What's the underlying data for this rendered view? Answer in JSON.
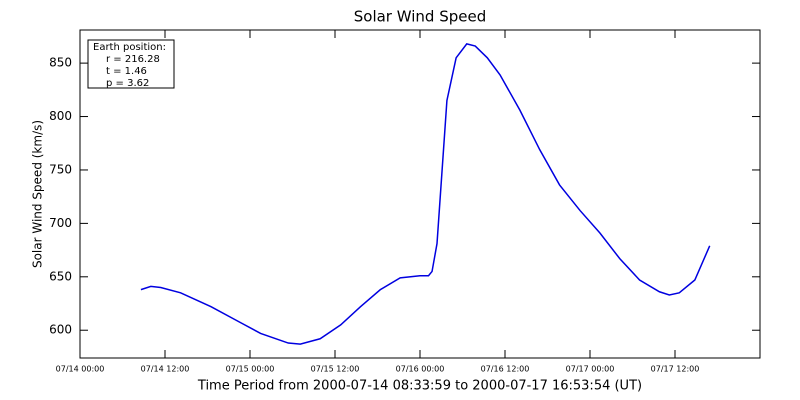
{
  "chart_data": {
    "type": "line",
    "title": "Solar Wind Speed",
    "xlabel": "Time Period from 2000-07-14 08:33:59 to 2000-07-17 16:53:54 (UT)",
    "ylabel": "Solar Wind Speed (km/s)",
    "annotations": [
      "Earth position:",
      "r = 216.28",
      "t = 1.46",
      "p = 3.62"
    ],
    "xlim": [
      0,
      96
    ],
    "ylim": [
      574,
      881
    ],
    "xticks": [
      {
        "value": 0,
        "label": "07/14 00:00"
      },
      {
        "value": 12,
        "label": "07/14 12:00"
      },
      {
        "value": 24,
        "label": "07/15 00:00"
      },
      {
        "value": 36,
        "label": "07/15 12:00"
      },
      {
        "value": 48,
        "label": "07/16 00:00"
      },
      {
        "value": 60,
        "label": "07/16 12:00"
      },
      {
        "value": 72,
        "label": "07/17 00:00"
      },
      {
        "value": 84,
        "label": "07/17 12:00"
      }
    ],
    "yticks": [
      600,
      650,
      700,
      750,
      800,
      850
    ],
    "grid": false,
    "series": [
      {
        "name": "Solar Wind Speed",
        "color": "#0000e0",
        "x": [
          8.6,
          10,
          11.4,
          14.2,
          18.5,
          22.7,
          25.5,
          29.4,
          31.1,
          33.9,
          36.8,
          39.6,
          42.4,
          45.2,
          48,
          49.2,
          49.7,
          50.4,
          51.8,
          53.1,
          54.6,
          55.8,
          57.5,
          59.3,
          62.1,
          64.9,
          67.7,
          70.6,
          73.4,
          76.2,
          79,
          81.8,
          83.2,
          84.6,
          86.8,
          88.9
        ],
        "values": [
          638,
          641,
          640,
          635,
          622,
          607,
          597,
          588,
          587,
          592,
          605,
          622,
          638,
          649,
          651,
          651,
          655,
          681,
          815,
          855,
          868,
          866,
          855,
          839,
          806,
          769,
          736,
          712,
          691,
          667,
          647,
          636,
          633,
          635,
          647,
          679
        ]
      }
    ]
  }
}
